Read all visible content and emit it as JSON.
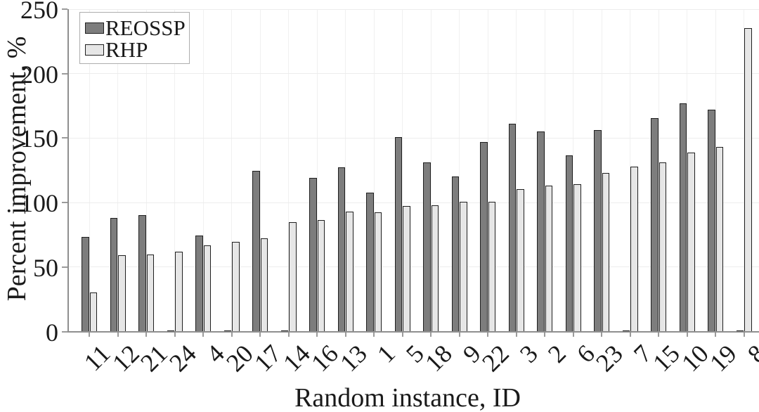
{
  "chart_data": {
    "type": "bar",
    "title": "",
    "xlabel": "Random instance, ID",
    "ylabel": "Percent improvement, %",
    "ylim": [
      0,
      250
    ],
    "yticks": [
      0,
      50,
      100,
      150,
      200,
      250
    ],
    "grid": true,
    "legend_position": "top-left-inside",
    "legend_border_color": "#adadad",
    "bar_edge_color": "#1f1f1f",
    "axis_color": "#8f8f8f",
    "grid_color": "#ededed",
    "categories": [
      "11",
      "12",
      "21",
      "24",
      "4",
      "20",
      "17",
      "14",
      "16",
      "13",
      "1",
      "5",
      "18",
      "9",
      "22",
      "3",
      "2",
      "6",
      "23",
      "7",
      "15",
      "10",
      "19",
      "8"
    ],
    "series": [
      {
        "name": "REOSSP",
        "color": "#7d7d7d",
        "values": [
          73.5,
          88,
          90,
          0,
          74.5,
          0,
          124.5,
          0,
          119,
          127.5,
          107.5,
          151,
          131,
          120.5,
          147,
          161,
          155,
          136.5,
          156,
          0,
          165.5,
          177,
          172,
          0
        ]
      },
      {
        "name": "RHP",
        "color": "#e6e6e6",
        "values": [
          30,
          59,
          59.5,
          62,
          67,
          69.5,
          72.5,
          85,
          86.5,
          93,
          92.5,
          97.5,
          98,
          100.5,
          100.5,
          110.5,
          113,
          114,
          123,
          128,
          131,
          138.5,
          143,
          235.5
        ]
      }
    ]
  }
}
